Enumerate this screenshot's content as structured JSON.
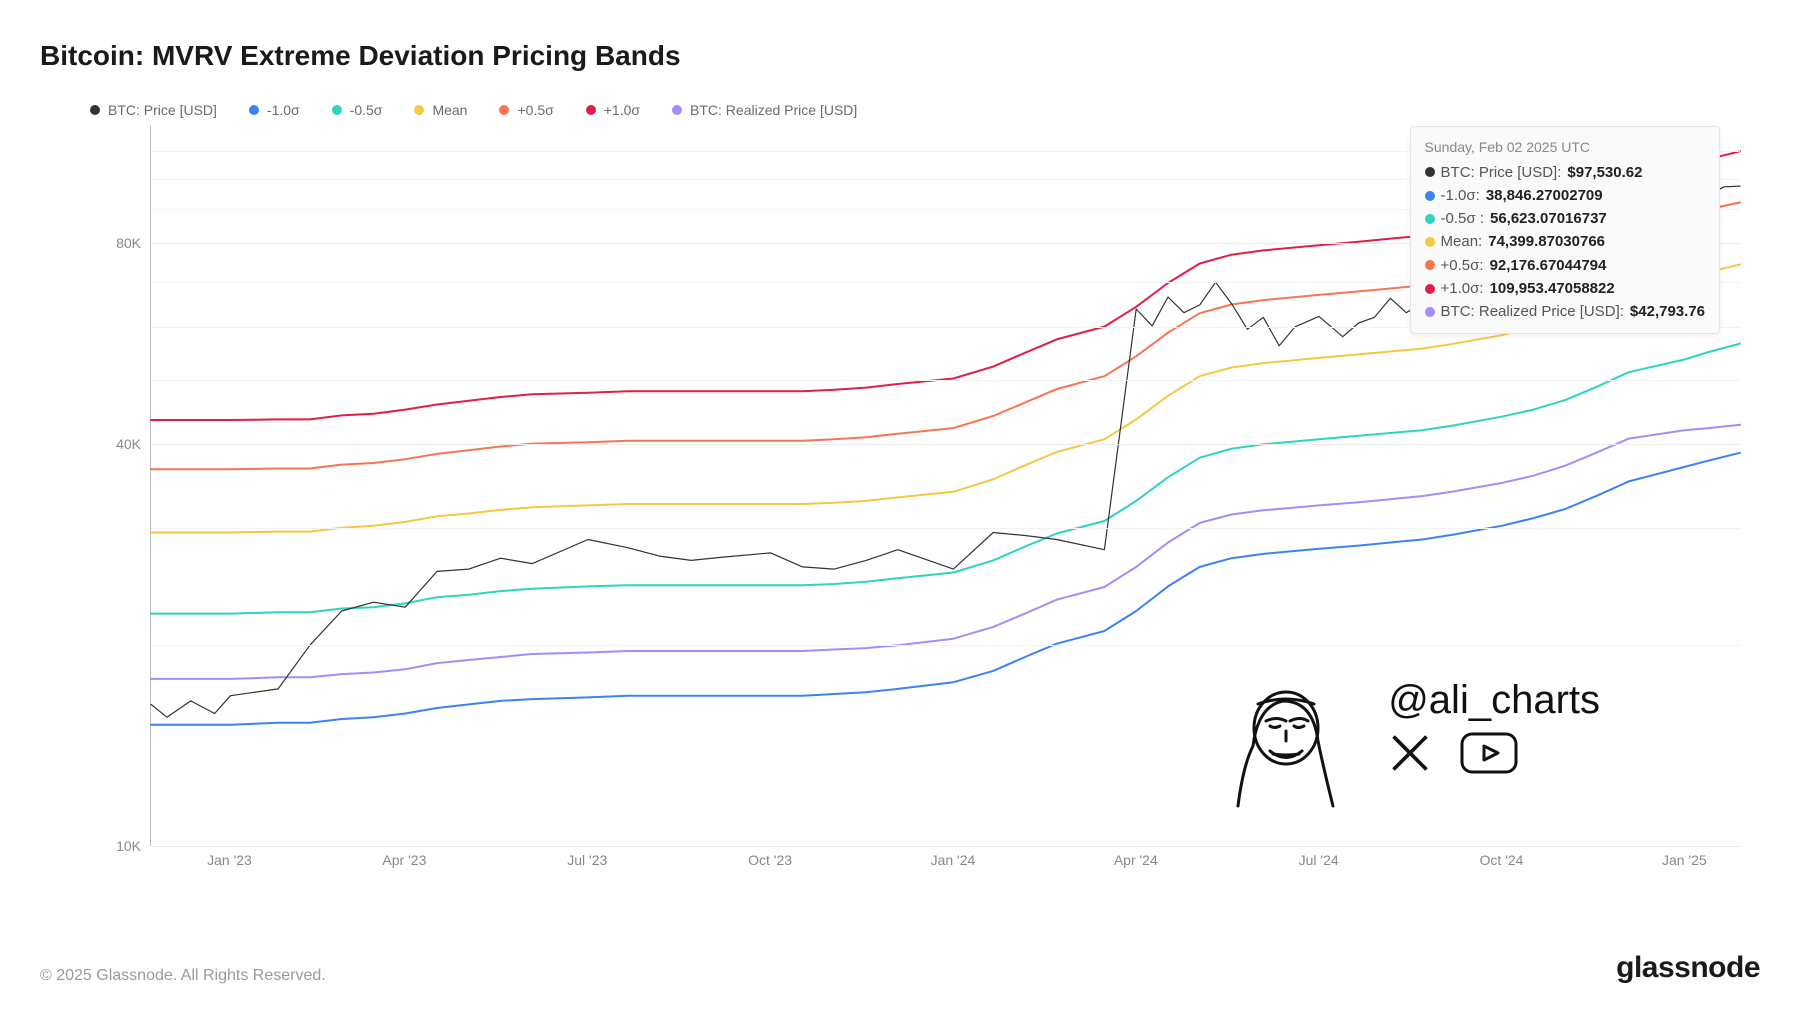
{
  "title": "Bitcoin: MVRV Extreme Deviation Pricing Bands",
  "copyright": "© 2025 Glassnode. All Rights Reserved.",
  "brand": "glassnode",
  "watermark": {
    "handle": "@ali_charts"
  },
  "chart": {
    "type": "line",
    "y_scale": "log",
    "y_min": 10000,
    "y_max": 120000,
    "y_ticks": [
      10000,
      40000,
      80000
    ],
    "y_tick_labels": [
      "10K",
      "40K",
      "80K"
    ],
    "grid_minor": [
      20000,
      30000,
      50000,
      60000,
      70000,
      90000,
      100000,
      110000
    ],
    "grid_color": "#ececec",
    "background_color": "#ffffff",
    "line_width": 2,
    "price_line_width": 1.2,
    "x_labels": [
      "Jan '23",
      "Apr '23",
      "Jul '23",
      "Oct '23",
      "Jan '24",
      "Apr '24",
      "Jul '24",
      "Oct '24",
      "Jan '25"
    ],
    "x_positions": [
      0.05,
      0.16,
      0.275,
      0.39,
      0.505,
      0.62,
      0.735,
      0.85,
      0.965
    ],
    "series": {
      "price": {
        "label": "BTC: Price [USD]",
        "color": "#333333"
      },
      "m1sig": {
        "label": "-1.0σ",
        "color": "#3b82f6"
      },
      "m05sig": {
        "label": "-0.5σ ",
        "color": "#2dd4bf"
      },
      "mean": {
        "label": "Mean",
        "color": "#f5c842"
      },
      "p05sig": {
        "label": "+0.5σ",
        "color": "#f97452"
      },
      "p1sig": {
        "label": "+1.0σ",
        "color": "#e11d48"
      },
      "realized": {
        "label": "BTC: Realized Price [USD]",
        "color": "#a78bfa"
      }
    },
    "x_data": [
      0,
      0.01,
      0.025,
      0.04,
      0.05,
      0.08,
      0.1,
      0.12,
      0.14,
      0.16,
      0.18,
      0.2,
      0.22,
      0.24,
      0.275,
      0.3,
      0.32,
      0.34,
      0.36,
      0.39,
      0.41,
      0.43,
      0.45,
      0.47,
      0.505,
      0.53,
      0.55,
      0.57,
      0.6,
      0.62,
      0.64,
      0.66,
      0.68,
      0.7,
      0.735,
      0.76,
      0.78,
      0.8,
      0.82,
      0.85,
      0.87,
      0.89,
      0.91,
      0.93,
      0.965,
      0.98,
      1.0
    ],
    "bands": {
      "m1sig": [
        15200,
        15200,
        15200,
        15200,
        15200,
        15300,
        15300,
        15500,
        15600,
        15800,
        16100,
        16300,
        16500,
        16600,
        16700,
        16800,
        16800,
        16800,
        16800,
        16800,
        16800,
        16900,
        17000,
        17200,
        17600,
        18300,
        19200,
        20100,
        21000,
        22500,
        24500,
        26200,
        27000,
        27400,
        27900,
        28200,
        28500,
        28800,
        29300,
        30200,
        31000,
        32000,
        33500,
        35200,
        37000,
        37800,
        38846
      ],
      "realized": [
        17800,
        17800,
        17800,
        17800,
        17800,
        17900,
        17900,
        18100,
        18200,
        18400,
        18800,
        19000,
        19200,
        19400,
        19500,
        19600,
        19600,
        19600,
        19600,
        19600,
        19600,
        19700,
        19800,
        20000,
        20450,
        21300,
        22300,
        23400,
        24450,
        26200,
        28500,
        30500,
        31400,
        31850,
        32400,
        32750,
        33100,
        33450,
        34000,
        35000,
        35900,
        37150,
        38900,
        40800,
        42000,
        42300,
        42793
      ],
      "m05sig": [
        22300,
        22300,
        22300,
        22300,
        22300,
        22400,
        22400,
        22700,
        22800,
        23100,
        23600,
        23800,
        24100,
        24300,
        24500,
        24600,
        24600,
        24600,
        24600,
        24600,
        24600,
        24700,
        24900,
        25200,
        25700,
        26800,
        28100,
        29400,
        30700,
        32900,
        35700,
        38200,
        39400,
        40000,
        40700,
        41200,
        41600,
        42000,
        42700,
        44000,
        45100,
        46600,
        48800,
        51300,
        53600,
        55000,
        56623
      ],
      "mean": [
        29500,
        29500,
        29500,
        29500,
        29500,
        29600,
        29600,
        30000,
        30200,
        30600,
        31200,
        31500,
        31900,
        32200,
        32400,
        32550,
        32550,
        32550,
        32550,
        32550,
        32550,
        32700,
        32900,
        33300,
        33950,
        35450,
        37200,
        38950,
        40700,
        43600,
        47300,
        50600,
        52150,
        52950,
        53900,
        54550,
        55100,
        55650,
        56600,
        58300,
        59800,
        61800,
        64700,
        68000,
        71200,
        72500,
        74399
      ],
      "p05sig": [
        36700,
        36700,
        36700,
        36700,
        36700,
        36800,
        36800,
        37300,
        37500,
        38000,
        38700,
        39200,
        39700,
        40100,
        40300,
        40500,
        40500,
        40500,
        40500,
        40500,
        40500,
        40700,
        41000,
        41500,
        42300,
        44100,
        46200,
        48400,
        50600,
        54200,
        58800,
        62900,
        64800,
        65800,
        67000,
        67800,
        68500,
        69200,
        70300,
        72400,
        74200,
        76600,
        80200,
        84300,
        88000,
        90000,
        92176
      ],
      "p1sig": [
        43500,
        43500,
        43500,
        43500,
        43500,
        43600,
        43600,
        44200,
        44450,
        45100,
        45900,
        46500,
        47100,
        47550,
        47800,
        48050,
        48050,
        48050,
        48050,
        48050,
        48050,
        48300,
        48650,
        49250,
        50200,
        52300,
        54850,
        57450,
        60050,
        64300,
        69800,
        74650,
        76950,
        78100,
        79500,
        80500,
        81350,
        82150,
        83500,
        86000,
        88100,
        91000,
        95300,
        100200,
        104900,
        107000,
        109953
      ],
      "price": [
        16300,
        15600,
        16500,
        15800,
        16800,
        17200,
        20000,
        22500,
        23200,
        22800,
        25800,
        26000,
        27000,
        26500,
        28800,
        28000,
        27200,
        26800,
        27100,
        27500,
        26200,
        26000,
        26800,
        27800,
        26000,
        29500,
        29200,
        28800,
        27800,
        30500,
        33200,
        36800,
        38400,
        43500,
        42000,
        47000,
        44300,
        48000,
        51000,
        63800,
        64500,
        64700,
        59500,
        56200,
        62200,
        60800,
        62000
      ]
    },
    "price_tail_x": [
      0.62,
      0.63,
      0.64,
      0.65,
      0.66,
      0.67,
      0.68,
      0.69,
      0.7,
      0.71,
      0.72,
      0.735,
      0.75,
      0.76,
      0.77,
      0.78,
      0.79,
      0.8,
      0.81,
      0.82,
      0.83,
      0.84,
      0.85,
      0.86,
      0.87,
      0.88,
      0.89,
      0.9,
      0.91,
      0.92,
      0.93,
      0.94,
      0.95,
      0.965,
      0.97,
      0.98,
      0.99,
      1.0
    ],
    "price_tail_y": [
      63800,
      60200,
      66500,
      63000,
      64700,
      70000,
      65000,
      59500,
      62000,
      56200,
      60000,
      62200,
      58000,
      60800,
      62000,
      66200,
      63000,
      65200,
      69200,
      67000,
      71000,
      73000,
      69500,
      72500,
      75800,
      87500,
      91200,
      96700,
      98500,
      94200,
      98800,
      92200,
      95200,
      101000,
      98800,
      94500,
      97300,
      97530
    ]
  },
  "tooltip": {
    "date": "Sunday, Feb 02 2025 UTC",
    "rows": [
      {
        "key": "price",
        "label": "BTC: Price [USD]: ",
        "value": "$97,530.62"
      },
      {
        "key": "m1sig",
        "label": "-1.0σ: ",
        "value": "38,846.27002709"
      },
      {
        "key": "m05sig",
        "label": "-0.5σ : ",
        "value": "56,623.07016737"
      },
      {
        "key": "mean",
        "label": "Mean: ",
        "value": "74,399.87030766"
      },
      {
        "key": "p05sig",
        "label": "+0.5σ: ",
        "value": "92,176.67044794"
      },
      {
        "key": "p1sig",
        "label": "+1.0σ: ",
        "value": "109,953.47058822"
      },
      {
        "key": "realized",
        "label": "BTC: Realized Price [USD]: ",
        "value": "$42,793.76"
      }
    ]
  },
  "legend_order": [
    "price",
    "m1sig",
    "m05sig",
    "mean",
    "p05sig",
    "p1sig",
    "realized"
  ]
}
